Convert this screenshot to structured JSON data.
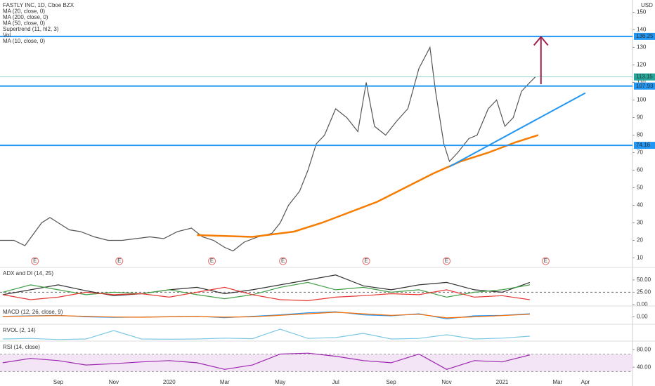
{
  "chart_data": [
    {
      "type": "line",
      "currency": "USD",
      "legend": [
        "FASTLY INC, 1D, Cboe BZX",
        "MA (20, close, 0)",
        "MA (200, close, 0)",
        "MA (50, close, 0)",
        "Supertrend (11, hl2, 3)",
        "Vol",
        "MA (10, close, 0)"
      ],
      "xlim": [
        -2.1,
        20.7
      ],
      "xticks": [
        {
          "value": 0,
          "label": "Sep"
        },
        {
          "value": 2,
          "label": "Nov"
        },
        {
          "value": 4,
          "label": "2020"
        },
        {
          "value": 6,
          "label": "Mar"
        },
        {
          "value": 8,
          "label": "May"
        },
        {
          "value": 10,
          "label": "Jul"
        },
        {
          "value": 12,
          "label": "Sep"
        },
        {
          "value": 14,
          "label": "Nov"
        },
        {
          "value": 16,
          "label": "2021"
        },
        {
          "value": 18,
          "label": "Mar"
        },
        {
          "value": 19,
          "label": "Apr"
        }
      ],
      "ylim": [
        5,
        157
      ],
      "yticks": [
        10,
        20,
        30,
        40,
        50,
        60,
        70,
        80,
        90,
        100,
        110,
        120,
        130,
        140,
        150
      ],
      "series": [
        {
          "color": "#555555",
          "x": [
            -2.1,
            -1.6,
            -1.2,
            -0.6,
            -0.3,
            0,
            0.4,
            0.8,
            1.3,
            1.8,
            2.3,
            2.8,
            3.3,
            3.8,
            4.3,
            4.8,
            5.2,
            5.6,
            6.0,
            6.3,
            6.7,
            7.2,
            7.7,
            8.0,
            8.3,
            8.7,
            9.0,
            9.3,
            9.6,
            10.0,
            10.4,
            10.8,
            11.1,
            11.4,
            11.8,
            12.2,
            12.6,
            13.0,
            13.4,
            13.6,
            13.9,
            14.1,
            14.4,
            14.8,
            15.1,
            15.5,
            15.8,
            16.1,
            16.4,
            16.7,
            17.0,
            17.2
          ],
          "values": [
            20,
            20,
            17,
            30,
            33,
            30,
            26,
            25,
            22,
            20,
            20,
            21,
            22,
            21,
            25,
            27,
            22,
            20,
            16,
            14,
            19,
            22,
            24,
            30,
            40,
            48,
            60,
            75,
            80,
            95,
            90,
            82,
            110,
            85,
            80,
            88,
            95,
            118,
            130,
            105,
            75,
            65,
            70,
            78,
            80,
            95,
            100,
            85,
            90,
            105,
            110,
            113.15
          ]
        },
        {
          "color": "#f57c00",
          "x": [
            5.0,
            7.0,
            8.5,
            9.5,
            10.5,
            11.5,
            12.5,
            13.5,
            14.5,
            15.5,
            16.5,
            17.3
          ],
          "values": [
            23,
            22,
            25,
            30,
            36,
            42,
            50,
            58,
            65,
            70,
            76,
            80
          ]
        }
      ],
      "levels": [
        136.25,
        107.93,
        74.16
      ],
      "level_color": "#2196f3",
      "trendline": {
        "x": [
          14.1,
          19.0
        ],
        "values": [
          62,
          104
        ],
        "color": "#2196f3"
      },
      "arrow": {
        "x": [
          17.4,
          17.4
        ],
        "values": [
          109,
          136
        ],
        "color": "#9c1f4f"
      },
      "earnings": {
        "x": [
          -0.84,
          2.2,
          5.54,
          8.1,
          11.1,
          14.0,
          17.57
        ],
        "label": "E"
      }
    },
    {
      "type": "line",
      "title": "ADX and DI (14, 25)",
      "ylim": [
        -4.3,
        74
      ],
      "yticks": [
        {
          "value": 50,
          "label": "50.00"
        },
        {
          "value": 25,
          "label": "25.00"
        },
        {
          "value": 0,
          "label": "0.00"
        }
      ],
      "dashed": 25,
      "x": [
        -2,
        -1,
        0,
        1,
        2,
        3,
        4,
        5,
        6,
        7,
        8,
        9,
        10,
        11,
        12,
        13,
        14,
        15,
        16,
        17
      ],
      "series": [
        {
          "color": "#333333",
          "values": [
            20,
            30,
            40,
            28,
            18,
            22,
            30,
            35,
            22,
            30,
            40,
            50,
            60,
            38,
            30,
            40,
            45,
            30,
            25,
            45
          ]
        },
        {
          "color": "#43a047",
          "values": [
            25,
            40,
            30,
            20,
            25,
            22,
            30,
            20,
            12,
            20,
            35,
            45,
            30,
            35,
            25,
            30,
            15,
            25,
            30,
            40
          ]
        },
        {
          "color": "#e53935",
          "values": [
            20,
            10,
            15,
            25,
            20,
            22,
            15,
            25,
            35,
            20,
            10,
            8,
            15,
            18,
            22,
            20,
            30,
            15,
            18,
            10
          ]
        }
      ]
    },
    {
      "type": "line",
      "title": "MACD (12, 26, close, 9)",
      "ylim": [
        -8,
        10
      ],
      "yticks": [
        {
          "value": 0,
          "label": "0.00"
        }
      ],
      "x": [
        -2,
        -1,
        0,
        1,
        2,
        3,
        4,
        5,
        6,
        7,
        8,
        9,
        10,
        11,
        12,
        13,
        14,
        15,
        16,
        17
      ],
      "series": [
        {
          "color": "#2196f3",
          "values": [
            0.5,
            1,
            1.5,
            0,
            -0.5,
            -0.3,
            0.2,
            0.5,
            -0.8,
            0.5,
            2,
            4,
            5,
            2,
            1,
            3,
            -2,
            1,
            1.5,
            3
          ]
        },
        {
          "color": "#ff6d00",
          "values": [
            0.3,
            0.8,
            1.2,
            0.5,
            -0.2,
            -0.4,
            0,
            0.4,
            -0.3,
            0,
            1.5,
            3,
            4.5,
            3,
            1.5,
            2.5,
            -1,
            0,
            1.2,
            2.5
          ]
        }
      ]
    },
    {
      "type": "line",
      "title": "RVOL (2, 14)",
      "ylim": [
        0,
        6
      ],
      "yticks": [],
      "x": [
        -2,
        -1,
        0,
        1,
        2,
        3,
        4,
        5,
        6,
        7,
        8,
        9,
        10,
        11,
        12,
        13,
        14,
        15,
        16,
        17
      ],
      "series": [
        {
          "color": "#7ec8e3",
          "values": [
            1,
            1.2,
            0.8,
            1,
            4,
            1,
            0.9,
            1,
            1.3,
            1.1,
            4.5,
            1.2,
            1.5,
            3,
            1,
            1.2,
            2.5,
            1,
            1.3,
            2
          ]
        }
      ]
    },
    {
      "type": "line",
      "title": "RSI (14, close)",
      "ylim": [
        5,
        98
      ],
      "yticks": [
        {
          "value": 80,
          "label": "80.00"
        },
        {
          "value": 40,
          "label": "40.00"
        }
      ],
      "band": [
        70,
        30
      ],
      "x": [
        -2,
        -1,
        0,
        1,
        2,
        3,
        4,
        5,
        6,
        7,
        8,
        9,
        10,
        11,
        12,
        13,
        14,
        15,
        16,
        17
      ],
      "series": [
        {
          "color": "#9c27b0",
          "values": [
            50,
            60,
            55,
            45,
            48,
            52,
            55,
            50,
            35,
            45,
            70,
            72,
            65,
            55,
            50,
            70,
            35,
            55,
            52,
            68
          ]
        }
      ]
    }
  ]
}
